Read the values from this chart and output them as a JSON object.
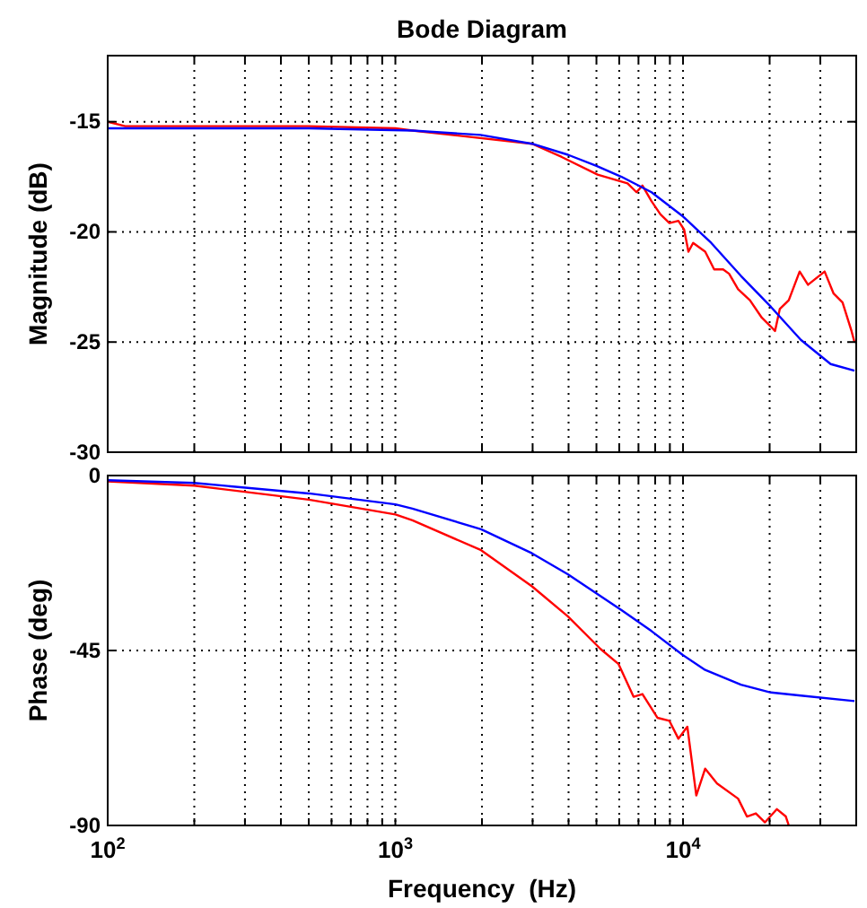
{
  "chart_data": [
    {
      "type": "line",
      "title": "Bode Diagram",
      "ylabel": "Magnitude (dB)",
      "xlim": [
        100,
        40000
      ],
      "ylim": [
        -30,
        -12
      ],
      "log": "x",
      "grid": true,
      "tick_labels": "y",
      "xticks": [
        {
          "value": 100,
          "label": null
        },
        {
          "value": 200,
          "label": null
        },
        {
          "value": 300,
          "label": null
        },
        {
          "value": 400,
          "label": null
        },
        {
          "value": 500,
          "label": null
        },
        {
          "value": 600,
          "label": null
        },
        {
          "value": 700,
          "label": null
        },
        {
          "value": 800,
          "label": null
        },
        {
          "value": 900,
          "label": null
        },
        {
          "value": 1000,
          "label": null
        },
        {
          "value": 2000,
          "label": null
        },
        {
          "value": 3000,
          "label": null
        },
        {
          "value": 4000,
          "label": null
        },
        {
          "value": 5000,
          "label": null
        },
        {
          "value": 6000,
          "label": null
        },
        {
          "value": 7000,
          "label": null
        },
        {
          "value": 8000,
          "label": null
        },
        {
          "value": 9000,
          "label": null
        },
        {
          "value": 10000,
          "label": null
        },
        {
          "value": 20000,
          "label": null
        },
        {
          "value": 30000,
          "label": null
        }
      ],
      "yticks": [
        -30,
        -25,
        -20,
        -15
      ],
      "series": [
        {
          "color": "#ff0000",
          "x": [
            100,
            115,
            200,
            500,
            1000,
            1146,
            2985,
            3787,
            5047,
            6412,
            6890,
            7227,
            7766,
            8345,
            8967,
            9636,
            10090,
            10440,
            10840,
            11940,
            12830,
            13780,
            14460,
            15540,
            17080,
            18800,
            20200,
            20880,
            21690,
            23310,
            25430,
            27190,
            31060,
            33380,
            35850,
            38520,
            39440
          ],
          "values": [
            -15.0,
            -15.2,
            -15.2,
            -15.2,
            -15.3,
            -15.4,
            -16.0,
            -16.6,
            -17.4,
            -17.8,
            -18.2,
            -17.9,
            -18.6,
            -19.2,
            -19.6,
            -19.5,
            -19.9,
            -20.9,
            -20.5,
            -20.9,
            -21.7,
            -21.7,
            -21.9,
            -22.6,
            -23.1,
            -23.9,
            -24.3,
            -24.5,
            -23.5,
            -23.1,
            -21.8,
            -22.4,
            -21.8,
            -22.8,
            -23.2,
            -24.5,
            -25.0
          ]
        },
        {
          "color": "#0000ff",
          "x": [
            100,
            500,
            1146,
            1977,
            2985,
            3980,
            5000,
            6110,
            7770,
            10000,
            12530,
            15900,
            20200,
            25670,
            32590,
            39440
          ],
          "values": [
            -15.3,
            -15.3,
            -15.4,
            -15.6,
            -16.0,
            -16.5,
            -17.0,
            -17.5,
            -18.2,
            -19.3,
            -20.5,
            -22.0,
            -23.4,
            -24.9,
            -26.0,
            -26.3
          ]
        }
      ]
    },
    {
      "type": "line",
      "xlabel": "Frequency  (Hz)",
      "ylabel": "Phase (deg)",
      "xlim": [
        100,
        40000
      ],
      "ylim": [
        -90,
        0
      ],
      "log": "x",
      "grid": true,
      "xticks": [
        {
          "value": 100,
          "label": "10$^{2}$"
        },
        {
          "value": 200,
          "label": null
        },
        {
          "value": 300,
          "label": null
        },
        {
          "value": 400,
          "label": null
        },
        {
          "value": 500,
          "label": null
        },
        {
          "value": 600,
          "label": null
        },
        {
          "value": 700,
          "label": null
        },
        {
          "value": 800,
          "label": null
        },
        {
          "value": 900,
          "label": null
        },
        {
          "value": 1000,
          "label": "10$^{3}$"
        },
        {
          "value": 2000,
          "label": null
        },
        {
          "value": 3000,
          "label": null
        },
        {
          "value": 4000,
          "label": null
        },
        {
          "value": 5000,
          "label": null
        },
        {
          "value": 6000,
          "label": null
        },
        {
          "value": 7000,
          "label": null
        },
        {
          "value": 8000,
          "label": null
        },
        {
          "value": 9000,
          "label": null
        },
        {
          "value": 10000,
          "label": "10$^{4}$"
        },
        {
          "value": 20000,
          "label": null
        },
        {
          "value": 30000,
          "label": null
        }
      ],
      "yticks": [
        -90,
        -45,
        0
      ],
      "series": [
        {
          "color": "#ff0000",
          "x": [
            100,
            200,
            500,
            1000,
            1146,
            1986,
            2985,
            3975,
            5164,
            5970,
            6730,
            7227,
            8145,
            8967,
            9636,
            10350,
            11120,
            11940,
            13130,
            15540,
            16680,
            17910,
            19270,
            21200,
            22770,
            23310
          ],
          "values": [
            -1.5,
            -2.6,
            -6.2,
            -10,
            -11.5,
            -19.2,
            -28.5,
            -36.2,
            -44.6,
            -48.5,
            -56.9,
            -56.2,
            -62.3,
            -63.1,
            -67.7,
            -64.6,
            -82.3,
            -75.4,
            -79.2,
            -83.1,
            -87.7,
            -86.9,
            -89.2,
            -85.8,
            -87.7,
            -90
          ]
        },
        {
          "color": "#0000ff",
          "x": [
            100,
            200,
            500,
            1000,
            1146,
            1986,
            2985,
            3975,
            6110,
            7766,
            10000,
            11940,
            15900,
            20200,
            25670,
            39440
          ],
          "values": [
            -1.2,
            -1.9,
            -4.6,
            -7.4,
            -8.5,
            -13.8,
            -20,
            -25.4,
            -34.6,
            -40,
            -46.2,
            -50,
            -53.8,
            -55.8,
            -56.6,
            -58
          ]
        }
      ]
    }
  ]
}
